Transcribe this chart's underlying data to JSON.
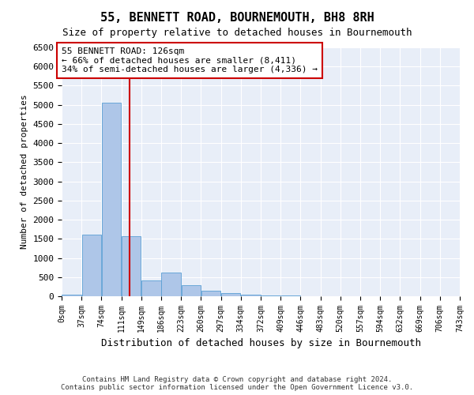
{
  "title": "55, BENNETT ROAD, BOURNEMOUTH, BH8 8RH",
  "subtitle": "Size of property relative to detached houses in Bournemouth",
  "xlabel": "Distribution of detached houses by size in Bournemouth",
  "ylabel": "Number of detached properties",
  "footer_line1": "Contains HM Land Registry data © Crown copyright and database right 2024.",
  "footer_line2": "Contains public sector information licensed under the Open Government Licence v3.0.",
  "annotation_title": "55 BENNETT ROAD: 126sqm",
  "annotation_line1": "← 66% of detached houses are smaller (8,411)",
  "annotation_line2": "34% of semi-detached houses are larger (4,336) →",
  "bin_edges": [
    0,
    37,
    74,
    111,
    148,
    185,
    222,
    259,
    296,
    333,
    370,
    407,
    444,
    481,
    518,
    555,
    592,
    629,
    666,
    703,
    740
  ],
  "bin_labels": [
    "0sqm",
    "37sqm",
    "74sqm",
    "111sqm",
    "149sqm",
    "186sqm",
    "223sqm",
    "260sqm",
    "297sqm",
    "334sqm",
    "372sqm",
    "409sqm",
    "446sqm",
    "483sqm",
    "520sqm",
    "557sqm",
    "594sqm",
    "632sqm",
    "669sqm",
    "706sqm",
    "743sqm"
  ],
  "bar_heights": [
    50,
    1600,
    5050,
    1560,
    420,
    620,
    280,
    140,
    90,
    50,
    30,
    15,
    10,
    5,
    3,
    2,
    1,
    1,
    0,
    0
  ],
  "bar_color": "#aec6e8",
  "bar_edge_color": "#5a9fd4",
  "vline_color": "#cc0000",
  "vline_x": 126,
  "annotation_box_edge_color": "#cc0000",
  "background_color": "#e8eef8",
  "ylim": [
    0,
    6500
  ],
  "yticks": [
    0,
    500,
    1000,
    1500,
    2000,
    2500,
    3000,
    3500,
    4000,
    4500,
    5000,
    5500,
    6000,
    6500
  ]
}
